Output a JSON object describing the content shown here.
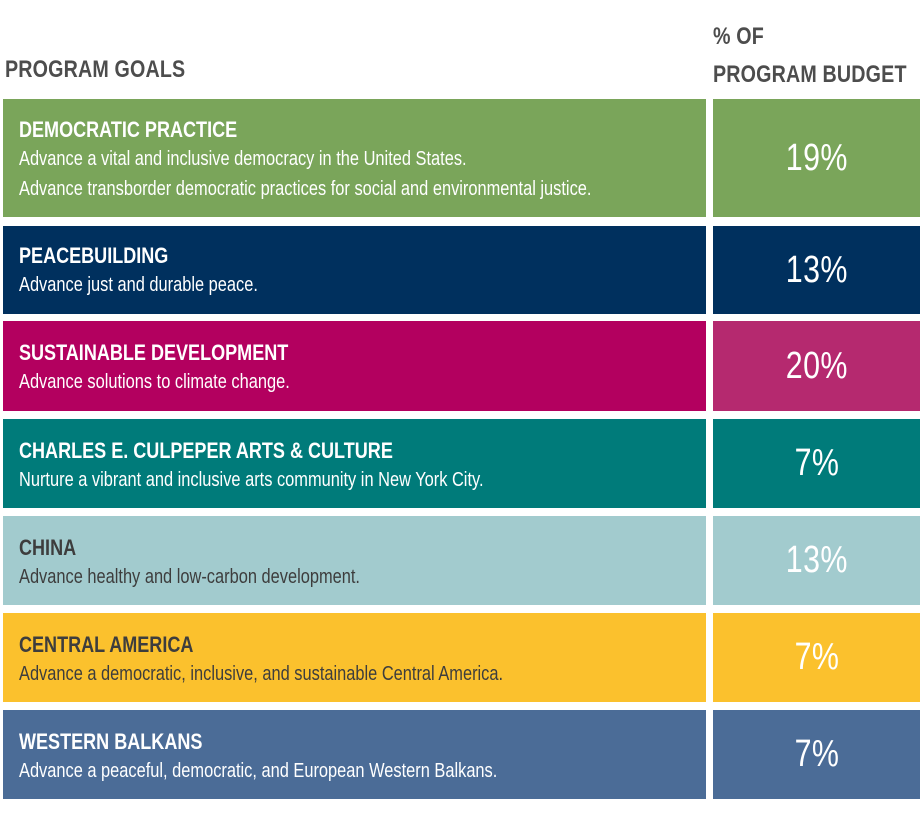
{
  "header": {
    "goals_label": "PROGRAM GOALS",
    "budget_label_line1": "% OF",
    "budget_label_line2": "PROGRAM BUDGET"
  },
  "rows": [
    {
      "title": "DEMOCRATIC PRACTICE",
      "lines": [
        "Advance a vital and inclusive democracy in the United States.",
        "Advance transborder democratic practices for social and environmental justice."
      ],
      "percent": "19%",
      "goal_color": "#7aa55a",
      "pct_color": "#7aa55a"
    },
    {
      "title": "PEACEBUILDING",
      "lines": [
        "Advance just and durable peace."
      ],
      "percent": "13%",
      "goal_color": "#00305e",
      "pct_color": "#00305e"
    },
    {
      "title": "SUSTAINABLE DEVELOPMENT",
      "lines": [
        "Advance solutions to climate change."
      ],
      "percent": "20%",
      "goal_color": "#b3005f",
      "pct_color": "#b5296f"
    },
    {
      "title": "CHARLES E. CULPEPER ARTS & CULTURE",
      "lines": [
        "Nurture a vibrant and inclusive arts community in New York City."
      ],
      "percent": "7%",
      "goal_color": "#007b7a",
      "pct_color": "#007b7a"
    },
    {
      "title": "CHINA",
      "lines": [
        "Advance healthy and low-carbon development."
      ],
      "percent": "13%",
      "goal_color": "#a2cbce",
      "pct_color": "#a2cbce"
    },
    {
      "title": "CENTRAL AMERICA",
      "lines": [
        "Advance a democratic, inclusive, and sustainable Central America."
      ],
      "percent": "7%",
      "goal_color": "#fbc12d",
      "pct_color": "#fbc12d"
    },
    {
      "title": "WESTERN BALKANS",
      "lines": [
        "Advance a peaceful, democratic, and European Western Balkans."
      ],
      "percent": "7%",
      "goal_color": "#4b6c97",
      "pct_color": "#4b6c97"
    }
  ]
}
